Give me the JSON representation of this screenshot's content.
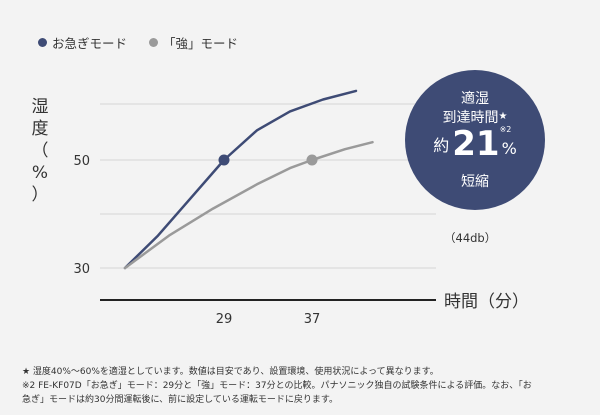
{
  "legend": [
    {
      "label": "お急ぎモード",
      "color": "#3e4b75"
    },
    {
      "label": "「強」モード",
      "color": "#9a9a9a"
    }
  ],
  "y_axis_label": [
    "湿",
    "度",
    "（",
    "%",
    "）"
  ],
  "x_axis_label": "時間（分）",
  "badge": {
    "line1": "適湿",
    "line2": "到達時間",
    "star": "★",
    "prefix": "約",
    "value": "21",
    "unit": "%",
    "note": "※2",
    "line4": "短縮"
  },
  "db_note": "（44db）",
  "footnotes": [
    "★ 湿度40%～60%を適湿としています。数値は目安であり、設置環境、使用状況によって異なります。",
    "※2 FE-KF07D「お急ぎ」モード：29分と「強」モード：37分との比較。パナソニック独自の試験条件による評価。なお、「お",
    "急ぎ」モードは約30分間運転後に、前に設定している運転モードに戻ります。"
  ],
  "chart_data": {
    "type": "line",
    "x_ticks": [
      "29",
      "37"
    ],
    "y_ticks": [
      "30",
      "50"
    ],
    "xlabel": "時間（分）",
    "ylabel": "湿度（%）",
    "ylim": [
      25,
      62
    ],
    "xlim": [
      20,
      48
    ],
    "series": [
      {
        "name": "お急ぎモード",
        "color": "#3e4b75",
        "points": [
          [
            20,
            30
          ],
          [
            23,
            36
          ],
          [
            26,
            43
          ],
          [
            29,
            50
          ],
          [
            32,
            55.5
          ],
          [
            35,
            59
          ],
          [
            38,
            61.2
          ],
          [
            41,
            62.8
          ]
        ],
        "marker": [
          29,
          50
        ]
      },
      {
        "name": "「強」モード",
        "color": "#9a9a9a",
        "points": [
          [
            20,
            30
          ],
          [
            24,
            36
          ],
          [
            28,
            41
          ],
          [
            32,
            45.5
          ],
          [
            35,
            48.5
          ],
          [
            37,
            50
          ],
          [
            40,
            52
          ],
          [
            42.5,
            53.3
          ]
        ],
        "marker": [
          37,
          50
        ]
      }
    ]
  }
}
